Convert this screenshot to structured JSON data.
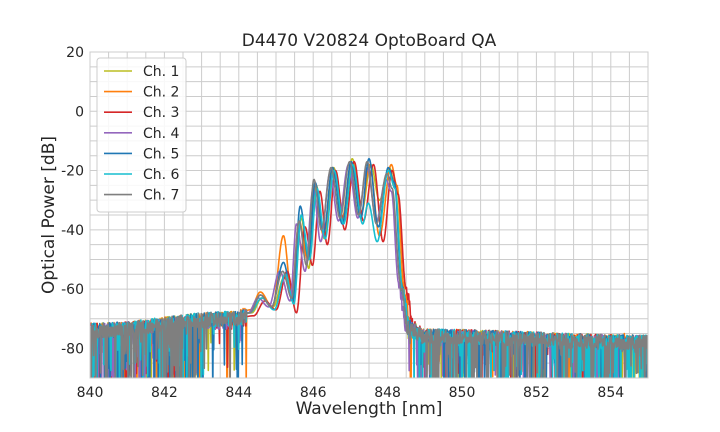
{
  "chart_data": {
    "type": "line",
    "title": "D4470 V20824 OptoBoard QA",
    "xlabel": "Wavelength [nm]",
    "ylabel": "Optical Power [dB]",
    "xlim": [
      840,
      855
    ],
    "ylim": [
      -90,
      20
    ],
    "xticks": [
      "840",
      "842",
      "844",
      "846",
      "848",
      "850",
      "852",
      "854"
    ],
    "yticks": [
      "20",
      "0",
      "-20",
      "-40",
      "-60",
      "-80"
    ],
    "grid": true,
    "legend": "top-left",
    "series": [
      {
        "name": "Ch. 1",
        "color": "#bcbd22",
        "points": [
          [
            840,
            -73
          ],
          [
            843.9,
            -69
          ],
          [
            844.35,
            -68
          ],
          [
            844.62,
            -63
          ],
          [
            844.92,
            -66
          ],
          [
            845.22,
            -56
          ],
          [
            845.45,
            -64
          ],
          [
            845.68,
            -36
          ],
          [
            845.88,
            -53
          ],
          [
            846.08,
            -25
          ],
          [
            846.3,
            -43
          ],
          [
            846.55,
            -19
          ],
          [
            846.8,
            -38
          ],
          [
            847.05,
            -16
          ],
          [
            847.3,
            -34
          ],
          [
            847.55,
            -18
          ],
          [
            847.78,
            -30
          ],
          [
            848.05,
            -19
          ],
          [
            848.2,
            -25
          ],
          [
            848.4,
            -58
          ],
          [
            848.6,
            -72
          ],
          [
            849,
            -75
          ],
          [
            855,
            -77
          ]
        ]
      },
      {
        "name": "Ch. 2",
        "color": "#ff7f0e",
        "points": [
          [
            840,
            -73
          ],
          [
            843.9,
            -69
          ],
          [
            844.3,
            -67
          ],
          [
            844.58,
            -61
          ],
          [
            844.9,
            -66
          ],
          [
            845.2,
            -42
          ],
          [
            845.42,
            -62
          ],
          [
            845.62,
            -37
          ],
          [
            845.85,
            -50
          ],
          [
            846.05,
            -25
          ],
          [
            846.28,
            -42
          ],
          [
            846.52,
            -19
          ],
          [
            846.78,
            -36
          ],
          [
            847.02,
            -18
          ],
          [
            847.28,
            -35
          ],
          [
            847.52,
            -18
          ],
          [
            847.78,
            -42
          ],
          [
            848.1,
            -18
          ],
          [
            848.25,
            -25
          ],
          [
            848.45,
            -60
          ],
          [
            848.65,
            -73
          ],
          [
            849,
            -75
          ],
          [
            855,
            -77
          ]
        ]
      },
      {
        "name": "Ch. 3",
        "color": "#d62728",
        "points": [
          [
            840,
            -73
          ],
          [
            843.9,
            -70
          ],
          [
            844.4,
            -69
          ],
          [
            844.7,
            -64
          ],
          [
            845.0,
            -67
          ],
          [
            845.3,
            -54
          ],
          [
            845.55,
            -68
          ],
          [
            845.78,
            -39
          ],
          [
            845.98,
            -52
          ],
          [
            846.18,
            -27
          ],
          [
            846.38,
            -45
          ],
          [
            846.6,
            -20
          ],
          [
            846.85,
            -40
          ],
          [
            847.1,
            -17
          ],
          [
            847.35,
            -37
          ],
          [
            847.62,
            -18
          ],
          [
            847.88,
            -44
          ],
          [
            848.12,
            -20
          ],
          [
            848.28,
            -28
          ],
          [
            848.5,
            -60
          ],
          [
            848.7,
            -72
          ],
          [
            849,
            -75
          ],
          [
            855,
            -77
          ]
        ]
      },
      {
        "name": "Ch. 4",
        "color": "#9467bd",
        "points": [
          [
            840,
            -73
          ],
          [
            843.9,
            -70
          ],
          [
            844.25,
            -68
          ],
          [
            844.52,
            -63
          ],
          [
            844.8,
            -66
          ],
          [
            845.1,
            -54
          ],
          [
            845.38,
            -64
          ],
          [
            845.55,
            -38
          ],
          [
            845.78,
            -54
          ],
          [
            846.0,
            -26
          ],
          [
            846.2,
            -44
          ],
          [
            846.45,
            -21
          ],
          [
            846.68,
            -37
          ],
          [
            846.95,
            -18
          ],
          [
            847.2,
            -36
          ],
          [
            847.45,
            -19
          ],
          [
            847.7,
            -37
          ],
          [
            847.95,
            -23
          ],
          [
            848.1,
            -27
          ],
          [
            848.3,
            -58
          ],
          [
            848.5,
            -72
          ],
          [
            849,
            -75
          ],
          [
            855,
            -77
          ]
        ]
      },
      {
        "name": "Ch. 5",
        "color": "#1f77b4",
        "points": [
          [
            840,
            -73
          ],
          [
            843.9,
            -69
          ],
          [
            844.3,
            -68
          ],
          [
            844.58,
            -62
          ],
          [
            844.88,
            -66
          ],
          [
            845.2,
            -51
          ],
          [
            845.45,
            -64
          ],
          [
            845.65,
            -32
          ],
          [
            845.88,
            -50
          ],
          [
            846.05,
            -24
          ],
          [
            846.28,
            -41
          ],
          [
            846.52,
            -19
          ],
          [
            846.78,
            -38
          ],
          [
            847.02,
            -17
          ],
          [
            847.28,
            -36
          ],
          [
            847.5,
            -16
          ],
          [
            847.75,
            -39
          ],
          [
            848.02,
            -19
          ],
          [
            848.18,
            -24
          ],
          [
            848.38,
            -58
          ],
          [
            848.58,
            -72
          ],
          [
            849,
            -75
          ],
          [
            855,
            -77
          ]
        ]
      },
      {
        "name": "Ch. 6",
        "color": "#17becf",
        "points": [
          [
            840,
            -73
          ],
          [
            843.9,
            -69
          ],
          [
            844.3,
            -68
          ],
          [
            844.62,
            -63
          ],
          [
            844.95,
            -67
          ],
          [
            845.25,
            -55
          ],
          [
            845.48,
            -65
          ],
          [
            845.68,
            -35
          ],
          [
            845.9,
            -50
          ],
          [
            846.1,
            -26
          ],
          [
            846.32,
            -43
          ],
          [
            846.56,
            -20
          ],
          [
            846.82,
            -38
          ],
          [
            847.06,
            -18
          ],
          [
            847.33,
            -38
          ],
          [
            847.48,
            -31
          ],
          [
            847.72,
            -44
          ],
          [
            848.02,
            -20
          ],
          [
            848.2,
            -26
          ],
          [
            848.4,
            -60
          ],
          [
            848.6,
            -73
          ],
          [
            849,
            -75
          ],
          [
            855,
            -77
          ]
        ]
      },
      {
        "name": "Ch. 7",
        "color": "#7f7f7f",
        "points": [
          [
            840,
            -73
          ],
          [
            843.9,
            -69
          ],
          [
            844.3,
            -68
          ],
          [
            844.58,
            -62
          ],
          [
            844.88,
            -66
          ],
          [
            845.18,
            -54
          ],
          [
            845.42,
            -63
          ],
          [
            845.62,
            -37
          ],
          [
            845.82,
            -52
          ],
          [
            846.02,
            -23
          ],
          [
            846.22,
            -40
          ],
          [
            846.48,
            -19
          ],
          [
            846.72,
            -36
          ],
          [
            846.98,
            -17
          ],
          [
            847.22,
            -35
          ],
          [
            847.45,
            -17
          ],
          [
            847.7,
            -38
          ],
          [
            847.98,
            -21
          ],
          [
            848.12,
            -26
          ],
          [
            848.35,
            -58
          ],
          [
            848.55,
            -72
          ],
          [
            849,
            -75
          ],
          [
            855,
            -77
          ]
        ]
      }
    ]
  }
}
